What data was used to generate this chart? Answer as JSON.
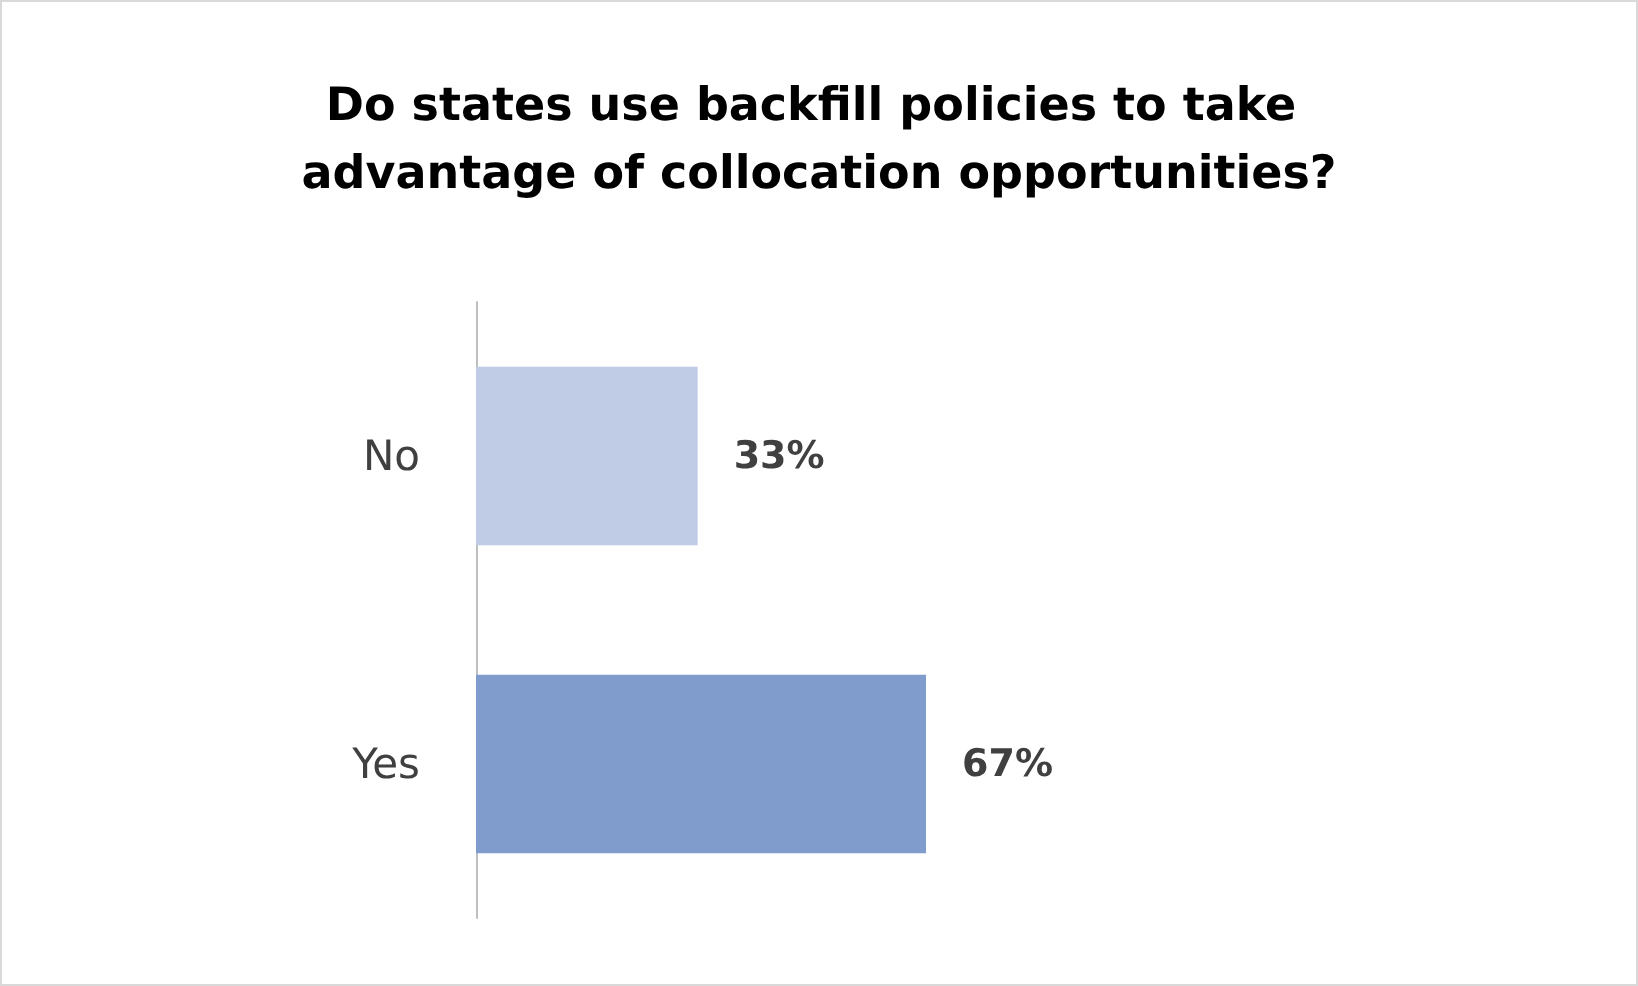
{
  "chart_data": {
    "type": "bar",
    "orientation": "horizontal",
    "title": "Do states use backfill policies to take advantage of collocation opportunities?",
    "categories": [
      "No",
      "Yes"
    ],
    "values": [
      33,
      67
    ],
    "colors": [
      "#c0cce6",
      "#7f9ccc"
    ],
    "value_labels": [
      "33%",
      "67%"
    ]
  }
}
